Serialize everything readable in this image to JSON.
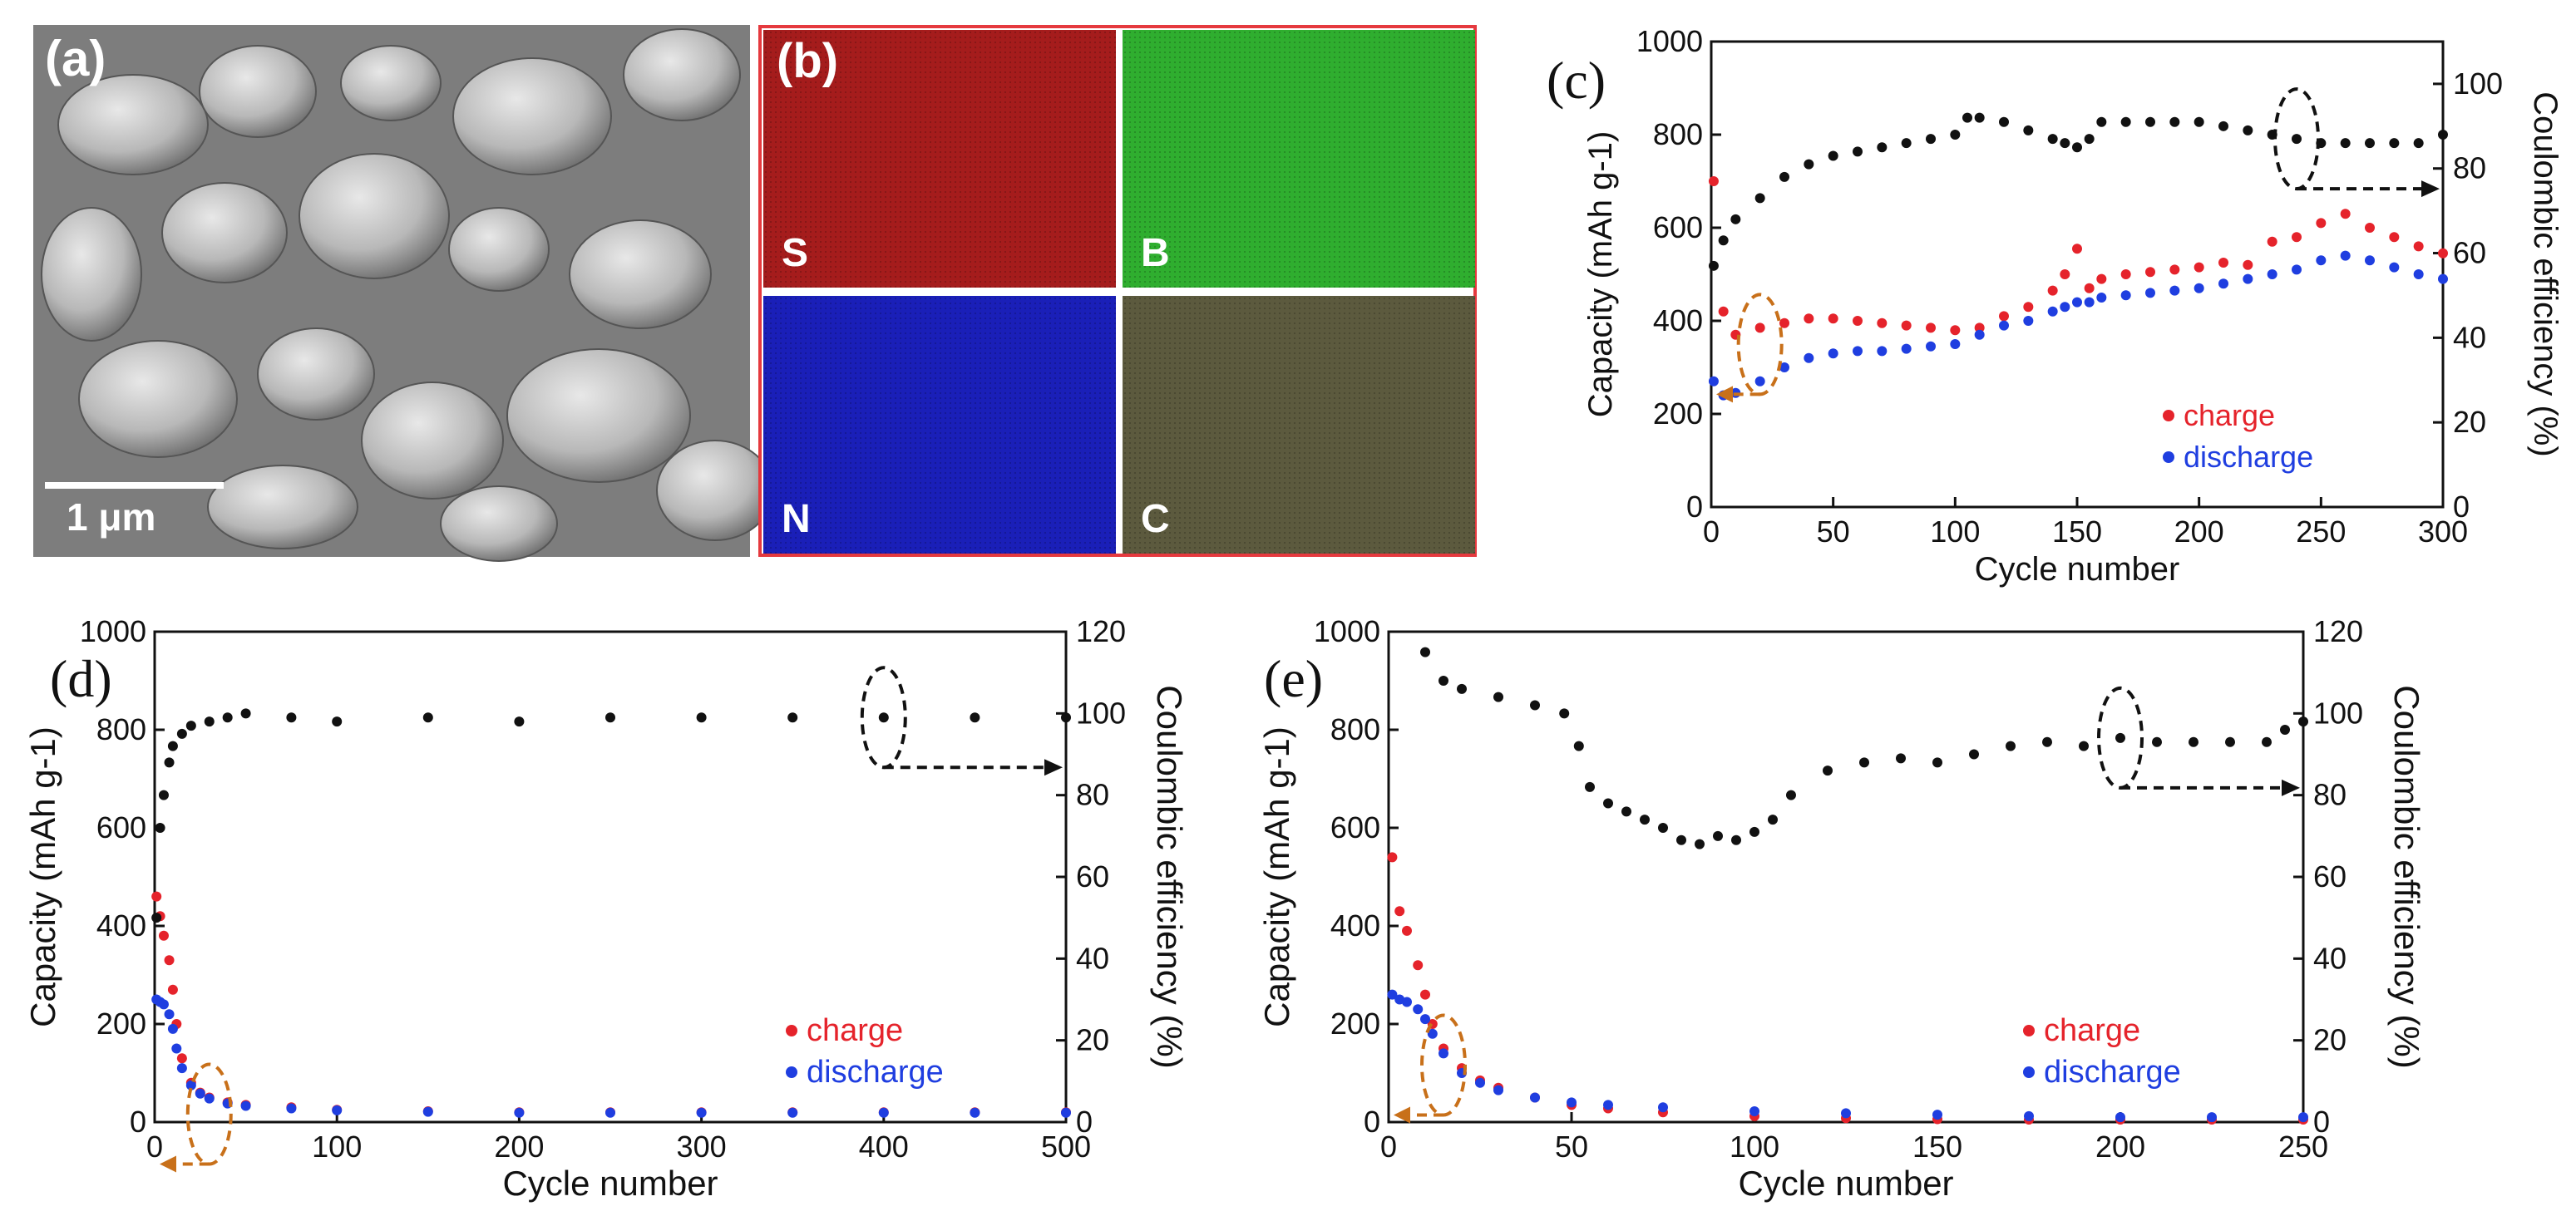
{
  "panel_a": {
    "letter": "(a)",
    "scale_label": "1 μm"
  },
  "panel_b": {
    "letter": "(b)",
    "tiles": [
      {
        "element": "S",
        "color": "#a51c1c"
      },
      {
        "element": "B",
        "color": "#2fae2f"
      },
      {
        "element": "N",
        "color": "#1a1fb8"
      },
      {
        "element": "C",
        "color": "#5c5a3e"
      }
    ],
    "border_color": "#e5393e"
  },
  "colors": {
    "charge": "#e5232b",
    "discharge": "#1f3ee0",
    "efficiency": "#111111",
    "marker": "#c8701a"
  },
  "chart_data": [
    {
      "type": "scatter",
      "letter": "(c)",
      "xlabel": "Cycle number",
      "ylabel": "Capacity (mAh g-1)",
      "y2label": "Coulombic efficiency (%)",
      "xlim": [
        0,
        300
      ],
      "xticks": [
        0,
        50,
        100,
        150,
        200,
        250,
        300
      ],
      "ylim": [
        0,
        1000
      ],
      "yticks": [
        0,
        200,
        400,
        600,
        800,
        1000
      ],
      "y2lim": [
        0,
        110
      ],
      "y2ticks": [
        0,
        20,
        40,
        60,
        80,
        100
      ],
      "legend": {
        "charge": "charge",
        "discharge": "discharge",
        "position": "bottom-right"
      },
      "series": [
        {
          "name": "charge",
          "axis": "left",
          "x": [
            1,
            5,
            10,
            20,
            30,
            40,
            50,
            60,
            70,
            80,
            90,
            100,
            110,
            120,
            130,
            140,
            145,
            150,
            155,
            160,
            170,
            180,
            190,
            200,
            210,
            220,
            230,
            240,
            250,
            260,
            270,
            280,
            290,
            300
          ],
          "y": [
            700,
            420,
            370,
            385,
            395,
            405,
            405,
            400,
            395,
            390,
            385,
            380,
            385,
            410,
            430,
            465,
            500,
            555,
            470,
            490,
            500,
            505,
            510,
            515,
            525,
            520,
            570,
            580,
            610,
            630,
            600,
            580,
            560,
            545
          ]
        },
        {
          "name": "discharge",
          "axis": "left",
          "x": [
            1,
            5,
            10,
            20,
            30,
            40,
            50,
            60,
            70,
            80,
            90,
            100,
            110,
            120,
            130,
            140,
            145,
            150,
            155,
            160,
            170,
            180,
            190,
            200,
            210,
            220,
            230,
            240,
            250,
            260,
            270,
            280,
            290,
            300
          ],
          "y": [
            270,
            240,
            245,
            270,
            300,
            320,
            330,
            335,
            335,
            340,
            345,
            350,
            370,
            390,
            400,
            420,
            430,
            440,
            440,
            450,
            455,
            460,
            465,
            470,
            480,
            490,
            500,
            510,
            530,
            540,
            530,
            515,
            500,
            490
          ]
        },
        {
          "name": "efficiency",
          "axis": "right",
          "x": [
            1,
            5,
            10,
            20,
            30,
            40,
            50,
            60,
            70,
            80,
            90,
            100,
            105,
            110,
            120,
            130,
            140,
            145,
            150,
            155,
            160,
            170,
            180,
            190,
            200,
            210,
            220,
            230,
            240,
            250,
            260,
            270,
            280,
            290,
            300
          ],
          "y": [
            57,
            63,
            68,
            73,
            78,
            81,
            83,
            84,
            85,
            86,
            87,
            88,
            92,
            92,
            91,
            89,
            87,
            86,
            85,
            87,
            91,
            91,
            91,
            91,
            91,
            90,
            89,
            88,
            87,
            86,
            86,
            86,
            86,
            86,
            88
          ]
        }
      ],
      "annotations": {
        "left_arrow_cycle": 20,
        "right_arrow_cycle": 240
      }
    },
    {
      "type": "scatter",
      "letter": "(d)",
      "xlabel": "Cycle number",
      "ylabel": "Capacity (mAh g-1)",
      "y2label": "Coulombic efficiency (%)",
      "xlim": [
        0,
        500
      ],
      "xticks": [
        0,
        100,
        200,
        300,
        400,
        500
      ],
      "ylim": [
        0,
        1000
      ],
      "yticks": [
        0,
        200,
        400,
        600,
        800,
        1000
      ],
      "y2lim": [
        0,
        120
      ],
      "y2ticks": [
        0,
        20,
        40,
        60,
        80,
        100,
        120
      ],
      "legend": {
        "charge": "charge",
        "discharge": "discharge",
        "position": "bottom-right"
      },
      "series": [
        {
          "name": "charge",
          "axis": "left",
          "x": [
            1,
            3,
            5,
            8,
            10,
            12,
            15,
            20,
            25,
            30,
            40,
            50,
            75,
            100,
            150,
            200,
            250,
            300,
            350,
            400,
            450,
            500
          ],
          "y": [
            460,
            420,
            380,
            330,
            270,
            200,
            130,
            80,
            60,
            50,
            40,
            35,
            30,
            25,
            22,
            20,
            20,
            20,
            20,
            20,
            20,
            20
          ]
        },
        {
          "name": "discharge",
          "axis": "left",
          "x": [
            1,
            3,
            5,
            8,
            10,
            12,
            15,
            20,
            25,
            30,
            40,
            50,
            75,
            100,
            150,
            200,
            250,
            300,
            350,
            400,
            450,
            500
          ],
          "y": [
            250,
            245,
            240,
            220,
            190,
            150,
            110,
            75,
            58,
            48,
            38,
            33,
            28,
            24,
            21,
            19,
            19,
            19,
            19,
            19,
            19,
            19
          ]
        },
        {
          "name": "efficiency",
          "axis": "right",
          "x": [
            1,
            3,
            5,
            8,
            10,
            15,
            20,
            30,
            40,
            50,
            75,
            100,
            150,
            200,
            250,
            300,
            350,
            400,
            450,
            500
          ],
          "y": [
            50,
            72,
            80,
            88,
            92,
            95,
            97,
            98,
            99,
            100,
            99,
            98,
            99,
            98,
            99,
            99,
            99,
            99,
            99,
            99
          ]
        }
      ],
      "annotations": {
        "left_arrow_cycle": 30,
        "right_arrow_cycle": 400
      }
    },
    {
      "type": "scatter",
      "letter": "(e)",
      "xlabel": "Cycle number",
      "ylabel": "Capacity (mAh g-1)",
      "y2label": "Coulombic efficiency (%)",
      "xlim": [
        0,
        250
      ],
      "xticks": [
        0,
        50,
        100,
        150,
        200,
        250
      ],
      "ylim": [
        0,
        1000
      ],
      "yticks": [
        0,
        200,
        400,
        600,
        800,
        1000
      ],
      "y2lim": [
        0,
        120
      ],
      "y2ticks": [
        0,
        20,
        40,
        60,
        80,
        100,
        120
      ],
      "legend": {
        "charge": "charge",
        "discharge": "discharge",
        "position": "bottom-right"
      },
      "series": [
        {
          "name": "charge",
          "axis": "left",
          "x": [
            1,
            3,
            5,
            8,
            10,
            12,
            15,
            20,
            25,
            30,
            40,
            50,
            60,
            75,
            100,
            125,
            150,
            175,
            200,
            225,
            250
          ],
          "y": [
            540,
            430,
            390,
            320,
            260,
            200,
            150,
            110,
            85,
            70,
            50,
            35,
            28,
            20,
            12,
            8,
            6,
            5,
            5,
            5,
            5
          ]
        },
        {
          "name": "discharge",
          "axis": "left",
          "x": [
            1,
            3,
            5,
            8,
            10,
            12,
            15,
            20,
            25,
            30,
            40,
            50,
            60,
            75,
            100,
            125,
            150,
            175,
            200,
            225,
            250
          ],
          "y": [
            260,
            250,
            245,
            230,
            210,
            180,
            140,
            100,
            80,
            65,
            50,
            40,
            35,
            30,
            22,
            18,
            15,
            12,
            10,
            10,
            10
          ]
        },
        {
          "name": "efficiency",
          "axis": "right",
          "x": [
            10,
            15,
            20,
            30,
            40,
            48,
            52,
            55,
            60,
            65,
            70,
            75,
            80,
            85,
            90,
            95,
            100,
            105,
            110,
            120,
            130,
            140,
            150,
            160,
            170,
            180,
            190,
            200,
            210,
            220,
            230,
            240,
            245,
            250
          ],
          "y": [
            115,
            108,
            106,
            104,
            102,
            100,
            92,
            82,
            78,
            76,
            74,
            72,
            69,
            68,
            70,
            69,
            71,
            74,
            80,
            86,
            88,
            89,
            88,
            90,
            92,
            93,
            92,
            94,
            93,
            93,
            93,
            93,
            96,
            98
          ]
        }
      ],
      "annotations": {
        "left_arrow_cycle": 15,
        "right_arrow_cycle": 200
      }
    }
  ]
}
